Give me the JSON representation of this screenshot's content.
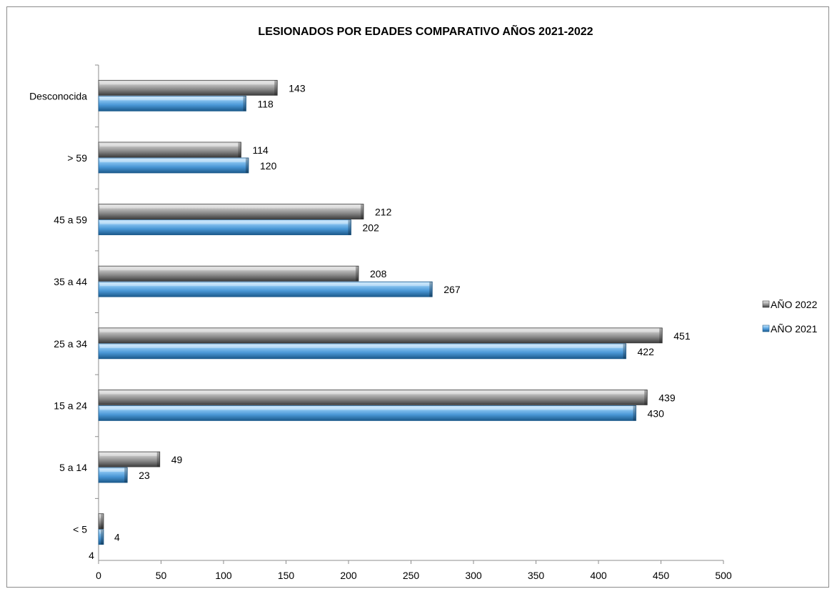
{
  "chart_data": {
    "type": "bar",
    "orientation": "horizontal",
    "title": "LESIONADOS POR EDADES COMPARATIVO AÑOS 2021-2022",
    "categories": [
      "Desconocida",
      "> 59",
      "45 a 59",
      "35 a 44",
      "25 a 34",
      "15 a 24",
      "5 a 14",
      "< 5"
    ],
    "series": [
      {
        "name": "AÑO 2022",
        "color": "#8c8c8c",
        "values": [
          143,
          114,
          212,
          208,
          451,
          439,
          49,
          4
        ]
      },
      {
        "name": "AÑO 2021",
        "color": "#5aa9e6",
        "values": [
          118,
          120,
          202,
          267,
          422,
          430,
          23,
          4
        ]
      }
    ],
    "data_labels": {
      "AÑO 2022": [
        "143",
        "114",
        "212",
        "208",
        "451",
        "439",
        "49",
        "4"
      ],
      "AÑO 2021": [
        "118",
        "120",
        "202",
        "267",
        "422",
        "430",
        "23",
        "4"
      ]
    },
    "xlim": [
      0,
      500
    ],
    "xticks": [
      "0",
      "50",
      "100",
      "150",
      "200",
      "250",
      "300",
      "350",
      "400",
      "450",
      "500"
    ],
    "xlabel": "",
    "ylabel": "",
    "grid": false,
    "legend_position": "right"
  }
}
